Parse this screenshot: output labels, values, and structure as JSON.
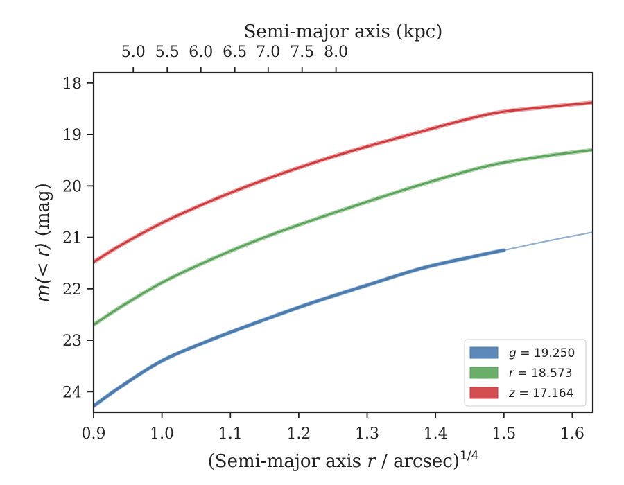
{
  "chart_data": {
    "type": "line",
    "xlabel_prefix": "(Semi-major axis ",
    "xlabel_var": "r",
    "xlabel_suffix": " / arcsec)",
    "xlabel_exp": "1/4",
    "ylabel_main": "m",
    "ylabel_paren": "(< r)",
    "ylabel_unit": " (mag)",
    "top_xlabel": "Semi-major axis (kpc)",
    "xlim": [
      0.9,
      1.63
    ],
    "ylim": [
      24.4,
      17.8
    ],
    "y_inverted": true,
    "x_ticks": [
      0.9,
      1.0,
      1.1,
      1.2,
      1.3,
      1.4,
      1.5,
      1.6
    ],
    "x_tick_labels": [
      "0.9",
      "1.0",
      "1.1",
      "1.2",
      "1.3",
      "1.4",
      "1.5",
      "1.6"
    ],
    "y_ticks": [
      18,
      19,
      20,
      21,
      22,
      23,
      24
    ],
    "y_tick_labels": [
      "18",
      "19",
      "20",
      "21",
      "22",
      "23",
      "24"
    ],
    "top_ticks_kpc": [
      5.0,
      5.5,
      6.0,
      6.5,
      7.0,
      7.5,
      8.0
    ],
    "top_tick_labels": [
      "5.0",
      "5.5",
      "6.0",
      "6.5",
      "7.0",
      "7.5",
      "8.0"
    ],
    "top_tick_x_positions": [
      0.958,
      1.0077,
      1.0569,
      1.1065,
      1.1553,
      1.2049,
      1.2545
    ],
    "legend_position": "lower-right",
    "series": [
      {
        "name": "g = 19.250",
        "legend_var": "g",
        "legend_value": "= 19.250",
        "color": "#4a7cb0",
        "x": [
          0.9,
          0.94,
          1.0,
          1.07,
          1.15,
          1.22,
          1.3,
          1.38,
          1.46,
          1.5
        ],
        "y": [
          24.28,
          23.9,
          23.4,
          23.0,
          22.6,
          22.27,
          21.93,
          21.6,
          21.36,
          21.25
        ],
        "model_x": [
          1.3,
          1.38,
          1.46,
          1.5,
          1.56,
          1.63
        ],
        "model_y": [
          21.93,
          21.6,
          21.36,
          21.25,
          21.08,
          20.9
        ]
      },
      {
        "name": "r = 18.573",
        "legend_var": "r",
        "legend_value": "= 18.573",
        "color": "#5aa55a",
        "x": [
          0.9,
          0.94,
          1.0,
          1.07,
          1.15,
          1.25,
          1.38,
          1.48,
          1.56,
          1.63
        ],
        "y": [
          22.7,
          22.35,
          21.88,
          21.44,
          21.0,
          20.53,
          19.97,
          19.6,
          19.42,
          19.3
        ],
        "model_x": [],
        "model_y": []
      },
      {
        "name": "z = 17.164",
        "legend_var": "z",
        "legend_value": "= 17.164",
        "color": "#cf3a3d",
        "x": [
          0.9,
          0.94,
          1.0,
          1.07,
          1.15,
          1.25,
          1.38,
          1.48,
          1.56,
          1.63
        ],
        "y": [
          21.48,
          21.15,
          20.72,
          20.3,
          19.88,
          19.43,
          18.94,
          18.6,
          18.47,
          18.38
        ],
        "model_x": [],
        "model_y": []
      }
    ]
  }
}
